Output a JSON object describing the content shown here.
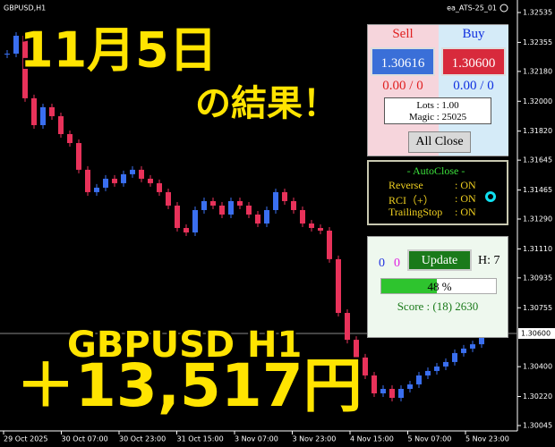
{
  "chart_data": {
    "type": "candlestick",
    "symbol_label": "GBPUSD,H1",
    "ea_label": "ea_ATS-25_01",
    "series": [
      {
        "name": "GBPUSD",
        "up_color": "#3a6ff0",
        "down_color": "#e8325a",
        "values": [
          1.32287,
          1.32395,
          1.32018,
          1.31856,
          1.31964,
          1.3191,
          1.31802,
          1.31748,
          1.31587,
          1.31452,
          1.31479,
          1.31533,
          1.31506,
          1.3156,
          1.31587,
          1.31533,
          1.31506,
          1.31452,
          1.31371,
          1.31236,
          1.31209,
          1.31344,
          1.31398,
          1.31371,
          1.31317,
          1.31398,
          1.31371,
          1.31317,
          1.31263,
          1.31344,
          1.31452,
          1.31398,
          1.31344,
          1.31263,
          1.31236,
          1.3122,
          1.31048,
          1.30724,
          1.30562,
          1.30455,
          1.30347,
          1.30239,
          1.30266,
          1.30212,
          1.30266,
          1.30293,
          1.30347,
          1.30374,
          1.30401,
          1.30428,
          1.30482,
          1.30509,
          1.30535,
          1.30589
        ]
      }
    ],
    "ylim": [
      1.30045,
      1.32535
    ],
    "yticks": [
      1.32535,
      1.32355,
      {
        "value": 1.3218,
        "label": "1.32180"
      },
      {
        "value": 1.32,
        "label": "1.32000"
      },
      {
        "value": 1.3182,
        "label": "1.31820"
      },
      1.31645,
      1.31465,
      {
        "value": 1.3129,
        "label": "1.31290"
      },
      {
        "value": 1.3111,
        "label": "1.31110"
      },
      1.30935,
      1.30755,
      {
        "value": 1.304,
        "label": "1.30400"
      },
      {
        "value": 1.3022,
        "label": "1.30220"
      },
      1.30045
    ],
    "current_price": {
      "value": 1.306,
      "label": "1.30600"
    },
    "xlabels": [
      "29 Oct 2025",
      "30 Oct 07:00",
      "30 Oct 23:00",
      "31 Oct 15:00",
      "3 Nov 07:00",
      "3 Nov 23:00",
      "4 Nov 15:00",
      "5 Nov 07:00",
      "5 Nov 23:00"
    ]
  },
  "overlay": {
    "date": "11月5日",
    "result": "の結果！",
    "pair": "GBPUSD H1",
    "profit": "＋13,517円"
  },
  "panels": {
    "trade": {
      "sell": "Sell",
      "buy": "Buy",
      "sell_price": "1.30616",
      "buy_price": "1.30600",
      "sell_pl": "0.00 / 0",
      "buy_pl": "0.00 / 0",
      "lots": "Lots : 1.00",
      "magic": "Magic : 25025",
      "close_all": "All Close"
    },
    "autoclose": {
      "title": "- AutoClose -",
      "rows": [
        [
          "Reverse",
          ": ON"
        ],
        [
          "RCI（+）",
          ": ON"
        ],
        [
          "TrailingStop",
          ": ON"
        ]
      ]
    },
    "status": {
      "count_a": "0",
      "count_b": "0",
      "update": "Update",
      "h": "H: 7",
      "progress": {
        "value": 48,
        "label": "48 %"
      },
      "score": "Score : (18) 2630"
    }
  }
}
